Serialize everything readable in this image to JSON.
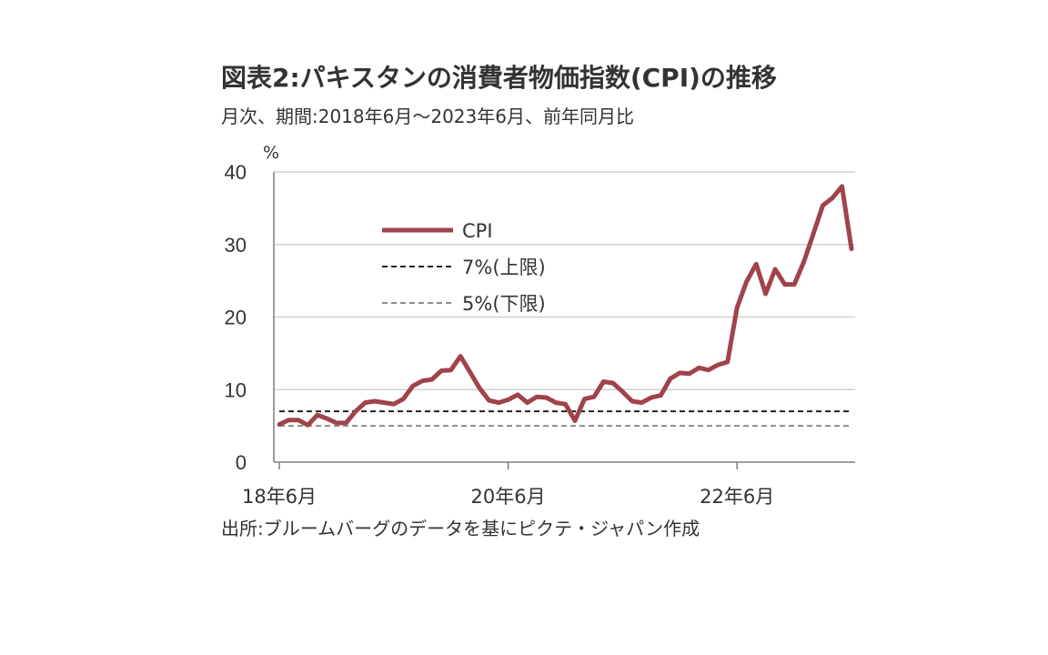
{
  "title": "図表2:パキスタンの消費者物価指数(CPI)の推移",
  "subtitle": "月次、期間:2018年6月〜2023年6月、前年同月比",
  "source": "出所:ブルームバーグのデータを基にピクテ・ジャパン作成",
  "colors": {
    "cpi": "#a0434b",
    "upper": "#222222",
    "lower": "#8c8c8c",
    "grid": "#d0d0d0",
    "axis": "#7f7f7f"
  },
  "chart_data": {
    "type": "line",
    "x_unit": "month index from 18年6月",
    "y_unit_label": "%",
    "ylim": [
      0,
      40
    ],
    "y_ticks": [
      "0",
      "10",
      "20",
      "30",
      "40"
    ],
    "x_ticks": [
      {
        "label": "18年6月",
        "index": 0
      },
      {
        "label": "20年6月",
        "index": 24
      },
      {
        "label": "22年6月",
        "index": 48
      }
    ],
    "grid": true,
    "legend_position": "upper-left",
    "series": [
      {
        "name": "CPI",
        "style": "solid",
        "color_key": "cpi",
        "values": [
          5.2,
          5.8,
          5.8,
          5.1,
          6.5,
          6.0,
          5.4,
          5.4,
          7.0,
          8.2,
          8.4,
          8.2,
          8.0,
          8.7,
          10.5,
          11.2,
          11.4,
          12.6,
          12.7,
          14.6,
          12.4,
          10.2,
          8.5,
          8.2,
          8.6,
          9.3,
          8.2,
          9.0,
          8.9,
          8.2,
          8.0,
          5.7,
          8.7,
          9.0,
          11.1,
          10.9,
          9.7,
          8.4,
          8.2,
          8.9,
          9.2,
          11.5,
          12.3,
          12.2,
          13.0,
          12.7,
          13.4,
          13.8,
          21.3,
          24.9,
          27.3,
          23.2,
          26.6,
          24.5,
          24.5,
          27.6,
          31.5,
          35.4,
          36.4,
          38.0,
          29.4
        ],
        "last_index": 60
      },
      {
        "name": "7%(上限)",
        "style": "dashed",
        "color_key": "upper",
        "values": [
          7,
          7
        ]
      },
      {
        "name": "5%(下限)",
        "style": "dashed",
        "color_key": "lower",
        "values": [
          5,
          5
        ]
      }
    ]
  }
}
